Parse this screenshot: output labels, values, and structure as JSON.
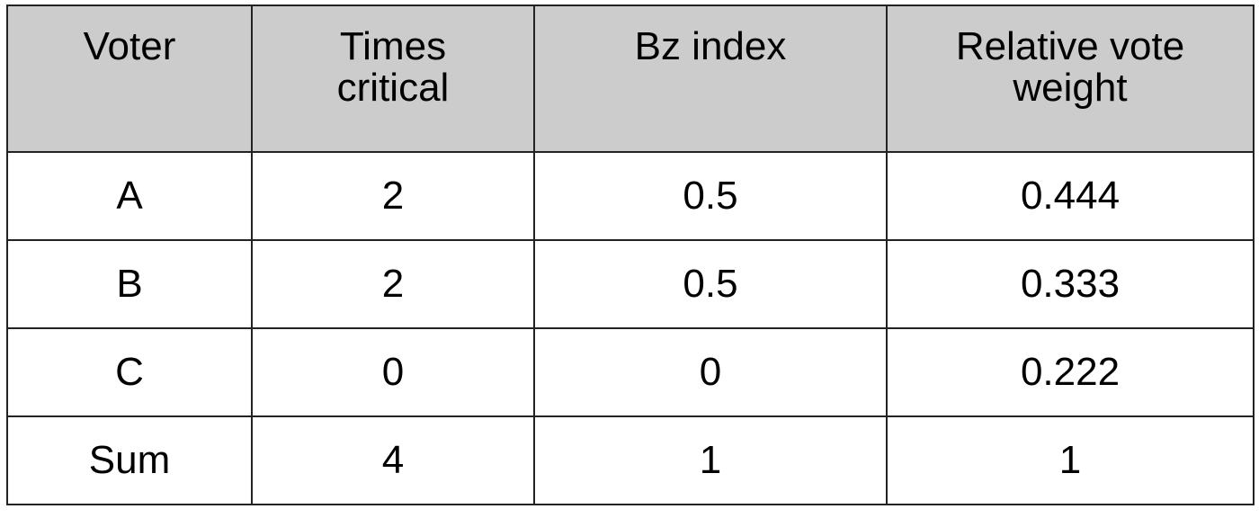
{
  "table": {
    "header": [
      [
        "Voter"
      ],
      [
        "Times",
        "critical"
      ],
      [
        "Bz index"
      ],
      [
        "Relative vote",
        "weight"
      ]
    ],
    "rows": [
      [
        "A",
        "2",
        "0.5",
        "0.444"
      ],
      [
        "B",
        "2",
        "0.5",
        "0.333"
      ],
      [
        "C",
        "0",
        "0",
        "0.222"
      ],
      [
        "Sum",
        "4",
        "1",
        "1"
      ]
    ]
  }
}
